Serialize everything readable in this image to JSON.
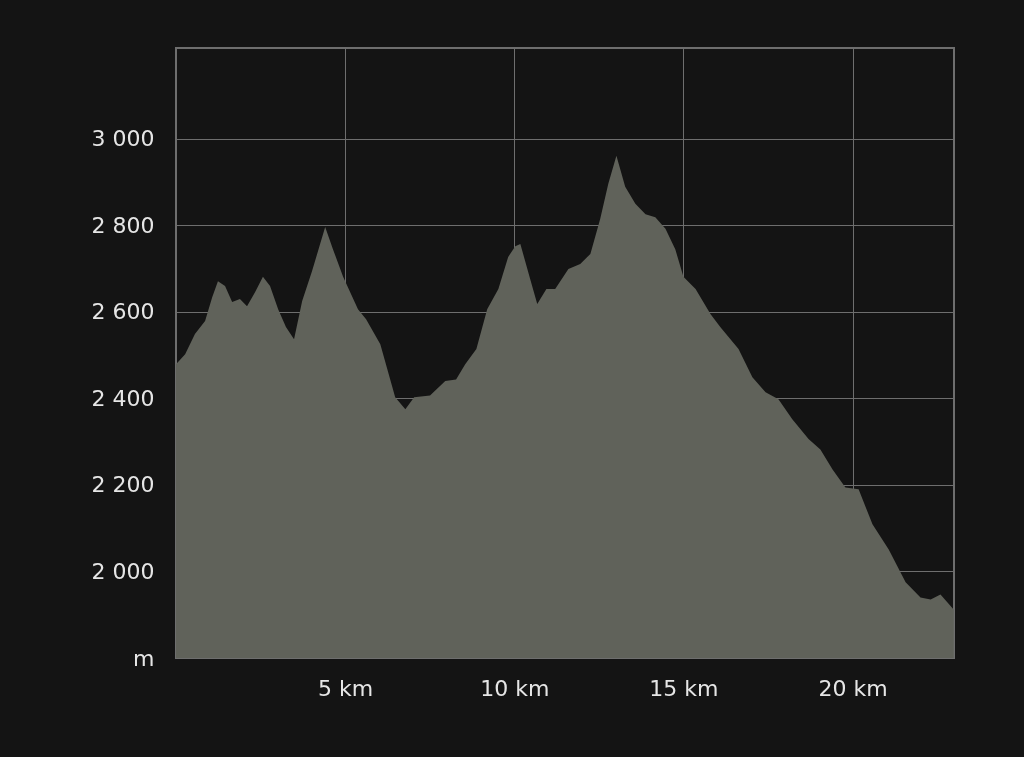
{
  "chart_data": {
    "type": "area",
    "xlim": [
      0,
      23
    ],
    "ylim": [
      1800,
      3210
    ],
    "xticks": [
      {
        "value": 5,
        "label": "5 km"
      },
      {
        "value": 10,
        "label": "10 km"
      },
      {
        "value": 15,
        "label": "15 km"
      },
      {
        "value": 20,
        "label": "20 km"
      }
    ],
    "yticks": [
      {
        "value": 1800,
        "label": "m"
      },
      {
        "value": 2000,
        "label": "2 000"
      },
      {
        "value": 2200,
        "label": "2 200"
      },
      {
        "value": 2400,
        "label": "2 400"
      },
      {
        "value": 2600,
        "label": "2 600"
      },
      {
        "value": 2800,
        "label": "2 800"
      },
      {
        "value": 3000,
        "label": "3 000"
      }
    ],
    "grid": true,
    "x": [
      0,
      0.27,
      0.56,
      0.86,
      1.07,
      1.24,
      1.45,
      1.66,
      1.89,
      2.1,
      2.34,
      2.57,
      2.78,
      3.02,
      3.25,
      3.49,
      3.73,
      4.02,
      4.41,
      4.64,
      4.94,
      5.38,
      5.62,
      6.04,
      6.48,
      6.78,
      7.04,
      7.51,
      7.96,
      8.28,
      8.55,
      8.88,
      9.2,
      9.53,
      9.82,
      10.03,
      10.18,
      10.47,
      10.68,
      10.95,
      11.21,
      11.6,
      11.95,
      12.25,
      12.54,
      12.78,
      13.02,
      13.28,
      13.58,
      13.88,
      14.17,
      14.47,
      14.76,
      15.0,
      15.36,
      15.8,
      16.09,
      16.63,
      17.04,
      17.43,
      17.81,
      18.22,
      18.7,
      19.05,
      19.41,
      19.79,
      20.18,
      20.59,
      21.07,
      21.57,
      22.01,
      22.31,
      22.6,
      22.99
    ],
    "series": [
      {
        "color": "#60625a",
        "values": [
          2479,
          2502,
          2549,
          2579,
          2634,
          2671,
          2660,
          2623,
          2630,
          2613,
          2646,
          2681,
          2660,
          2606,
          2565,
          2537,
          2625,
          2694,
          2796,
          2745,
          2681,
          2606,
          2583,
          2525,
          2403,
          2375,
          2403,
          2407,
          2440,
          2444,
          2479,
          2514,
          2606,
          2653,
          2727,
          2752,
          2757,
          2676,
          2618,
          2653,
          2653,
          2699,
          2711,
          2734,
          2815,
          2896,
          2961,
          2889,
          2850,
          2826,
          2819,
          2792,
          2745,
          2681,
          2653,
          2595,
          2565,
          2514,
          2449,
          2414,
          2398,
          2352,
          2306,
          2282,
          2236,
          2194,
          2190,
          2109,
          2051,
          1975,
          1940,
          1935,
          1947,
          1912
        ]
      }
    ]
  }
}
